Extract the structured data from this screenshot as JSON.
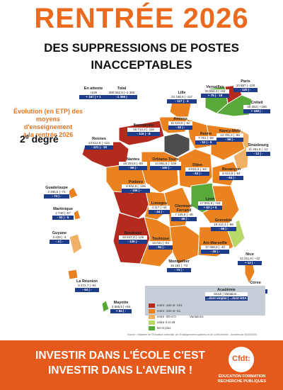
{
  "header": {
    "title": "RENTRÉE 2026",
    "subtitle_1": "DES SUPPRESSIONS DE POSTES",
    "subtitle_2": "INACCEPTABLES"
  },
  "intro": {
    "line1": "Évolution (en ETP) des",
    "line2": "moyens d'enseignement",
    "line3": "à la rentrée 2026",
    "degree_number": "2",
    "degree_sup": "d",
    "degree_word": "degré"
  },
  "colors": {
    "brand_orange": "#e55a1c",
    "title_orange": "#ea6a1f",
    "dark_red": "#b42a1e",
    "orange": "#e9821f",
    "light_orange": "#f0b066",
    "green": "#58a83a",
    "light_green": "#b8d96a",
    "dark_grey": "#4d4d4d",
    "badge_blue": "#1f3c8a"
  },
  "academies": [
    {
      "name": "En attente",
      "values": "+109",
      "badge": "+ 167 | + 1"
    },
    {
      "name": "Total",
      "values": "390 562,8 | -1 365",
      "badge": "-1 365 |"
    },
    {
      "name": "Lille",
      "values": "24 166,8 | -117",
      "badge": "- 117 | - 4"
    },
    {
      "name": "Normandie",
      "values": "16 714,3 | -116",
      "badge": "- 116 | - 8"
    },
    {
      "name": "Amiens",
      "values": "11 619,6 | -52",
      "badge": "- 52 | -"
    },
    {
      "name": "Reims",
      "values": "7 751 | -58",
      "badge": "- 52 | - 5"
    },
    {
      "name": "Nancy-Metz",
      "values": "13 701,3 | -96",
      "badge": "- 96 | -"
    },
    {
      "name": "Strasbourg",
      "values": "11 461,6 | -12",
      "badge": "- 12 | -"
    },
    {
      "name": "Versailles",
      "values": "33 593,3 | +84",
      "badge": "+ 75 | - 15"
    },
    {
      "name": "Paris",
      "values": "10 887 | -120",
      "badge": "- 120 | -"
    },
    {
      "name": "Créteil",
      "values": "30 253 | +168",
      "badge": "+ 168 | -"
    },
    {
      "name": "Rennes",
      "values": "13 612,8 | -121",
      "badge": "- 121 | - 19"
    },
    {
      "name": "Nantes",
      "values": "16 204,6 | -69",
      "badge": "- 69 | -"
    },
    {
      "name": "Orléans-Tours",
      "values": "14 861,5 | -100",
      "badge": "- 100 | -"
    },
    {
      "name": "Dijon",
      "values": "8 815,3 | -63",
      "badge": "- 63 | -"
    },
    {
      "name": "Besançon",
      "values": "6 513,8 | -64",
      "badge": "- 64 | -"
    },
    {
      "name": "Poitiers",
      "values": "9 942,9 | -106",
      "badge": "- 106 | -"
    },
    {
      "name": "Limoges",
      "values": "4 117 | -44",
      "badge": "- 44 | -"
    },
    {
      "name": "Clermont-Ferrand",
      "values": "7 125,9 | -49",
      "badge": "- 49 | -"
    },
    {
      "name": "Lyon",
      "values": "17 902,9 | +83",
      "badge": "+ 83 | + 5"
    },
    {
      "name": "Grenoble",
      "values": "19 412,4 | -66",
      "badge": "- 66 | -"
    },
    {
      "name": "Bordeaux",
      "values": "19 647,3 | -135",
      "badge": "- 135 | -"
    },
    {
      "name": "Toulouse",
      "values": "16 031 | -84",
      "badge": "- 84 | -"
    },
    {
      "name": "Montpellier",
      "values": "16 181 | -73",
      "badge": "- 73 | -"
    },
    {
      "name": "Aix-Marseille",
      "values": "17 056,5 | -40",
      "badge": "- 40 | -"
    },
    {
      "name": "Nice",
      "values": "12 211,8 | +12",
      "badge": "+ 12 | -"
    },
    {
      "name": "Corse",
      "values": "1 862,8 | -11",
      "badge": "- 11 | -"
    },
    {
      "name": "Guadeloupe",
      "values": "3 495,5 | -74",
      "badge": "- 74 | -"
    },
    {
      "name": "Martinique",
      "values": "2 740 | -57",
      "badge": "- 52 | - 5"
    },
    {
      "name": "Guyane",
      "values": "3 429 | -4",
      "badge": "- 4 | -"
    },
    {
      "name": "La Réunion",
      "values": "8 472,7 | -64",
      "badge": "- 64 | -"
    },
    {
      "name": "Mayotte",
      "values": "3 665,5 | +84",
      "badge": "+ 84 | -"
    }
  ],
  "legend": {
    "title": "Académie",
    "row_stock": "Stock | Variation...",
    "row_badge": "...dont emploi | ...dont HSA",
    "items": [
      "entre -160 et -101",
      "entre -100 et -51",
      "entre -50 et 0",
      "entre 0 et 49",
      "50 et plus"
    ],
    "variations": "Variations"
  },
  "source": "Source : ministère de l'Éducation nationale, de l'Enseignement supérieur et de la Recherche - données au 00/00/2026",
  "footer": {
    "line1": "INVESTIR DANS L'ÉCOLE C'EST",
    "line2": "INVESTIR DANS L'AVENIR !",
    "logo": "Cfdt:",
    "logo_cap1": "ÉDUCATION FORMATION",
    "logo_cap2": "RECHERCHE PUBLIQUES"
  }
}
